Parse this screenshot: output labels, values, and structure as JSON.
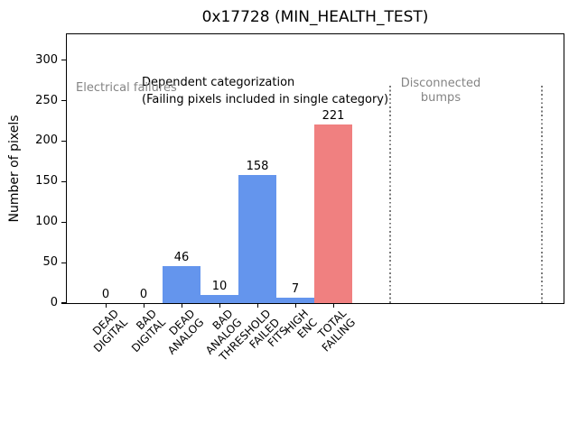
{
  "figure": {
    "title": "0x17728 (MIN_HEALTH_TEST)",
    "ylabel": "Number of pixels"
  },
  "annotations": {
    "dependent": "Dependent categorization\n(Failing pixels included in single category)",
    "electrical": "Electrical failures",
    "disconnected": "Disconnected\nbumps"
  },
  "colors": {
    "bar_blue": "#6495ed",
    "bar_red": "#f08080",
    "annotation_gray": "#848484",
    "divider_gray": "#7a7a7a",
    "axis_black": "#000000"
  },
  "chart_data": {
    "type": "bar",
    "title": "0x17728 (MIN_HEALTH_TEST)",
    "xlabel": "",
    "ylabel": "Number of pixels",
    "categories": [
      "DEAD\nDIGITAL",
      "BAD\nDIGITAL",
      "DEAD\nANALOG",
      "BAD\nANALOG",
      "THRESHOLD\nFAILED\nFITS",
      "HIGH\nENC",
      "TOTAL\nFAILING"
    ],
    "values": [
      0,
      0,
      46,
      10,
      158,
      7,
      221
    ],
    "bar_value_labels": [
      "0",
      "0",
      "46",
      "10",
      "158",
      "7",
      "221"
    ],
    "bar_colors": [
      "#6495ed",
      "#6495ed",
      "#6495ed",
      "#6495ed",
      "#6495ed",
      "#6495ed",
      "#f08080"
    ],
    "yticks": [
      0,
      50,
      100,
      150,
      200,
      250,
      300
    ],
    "ylim": [
      0,
      332
    ],
    "grid": false,
    "legend": "none",
    "annotations": [
      "Dependent categorization",
      "(Failing pixels included in single category)",
      "Electrical failures",
      "Disconnected bumps"
    ],
    "dividers": "two dotted vertical lines delimiting the Disconnected bumps region"
  }
}
